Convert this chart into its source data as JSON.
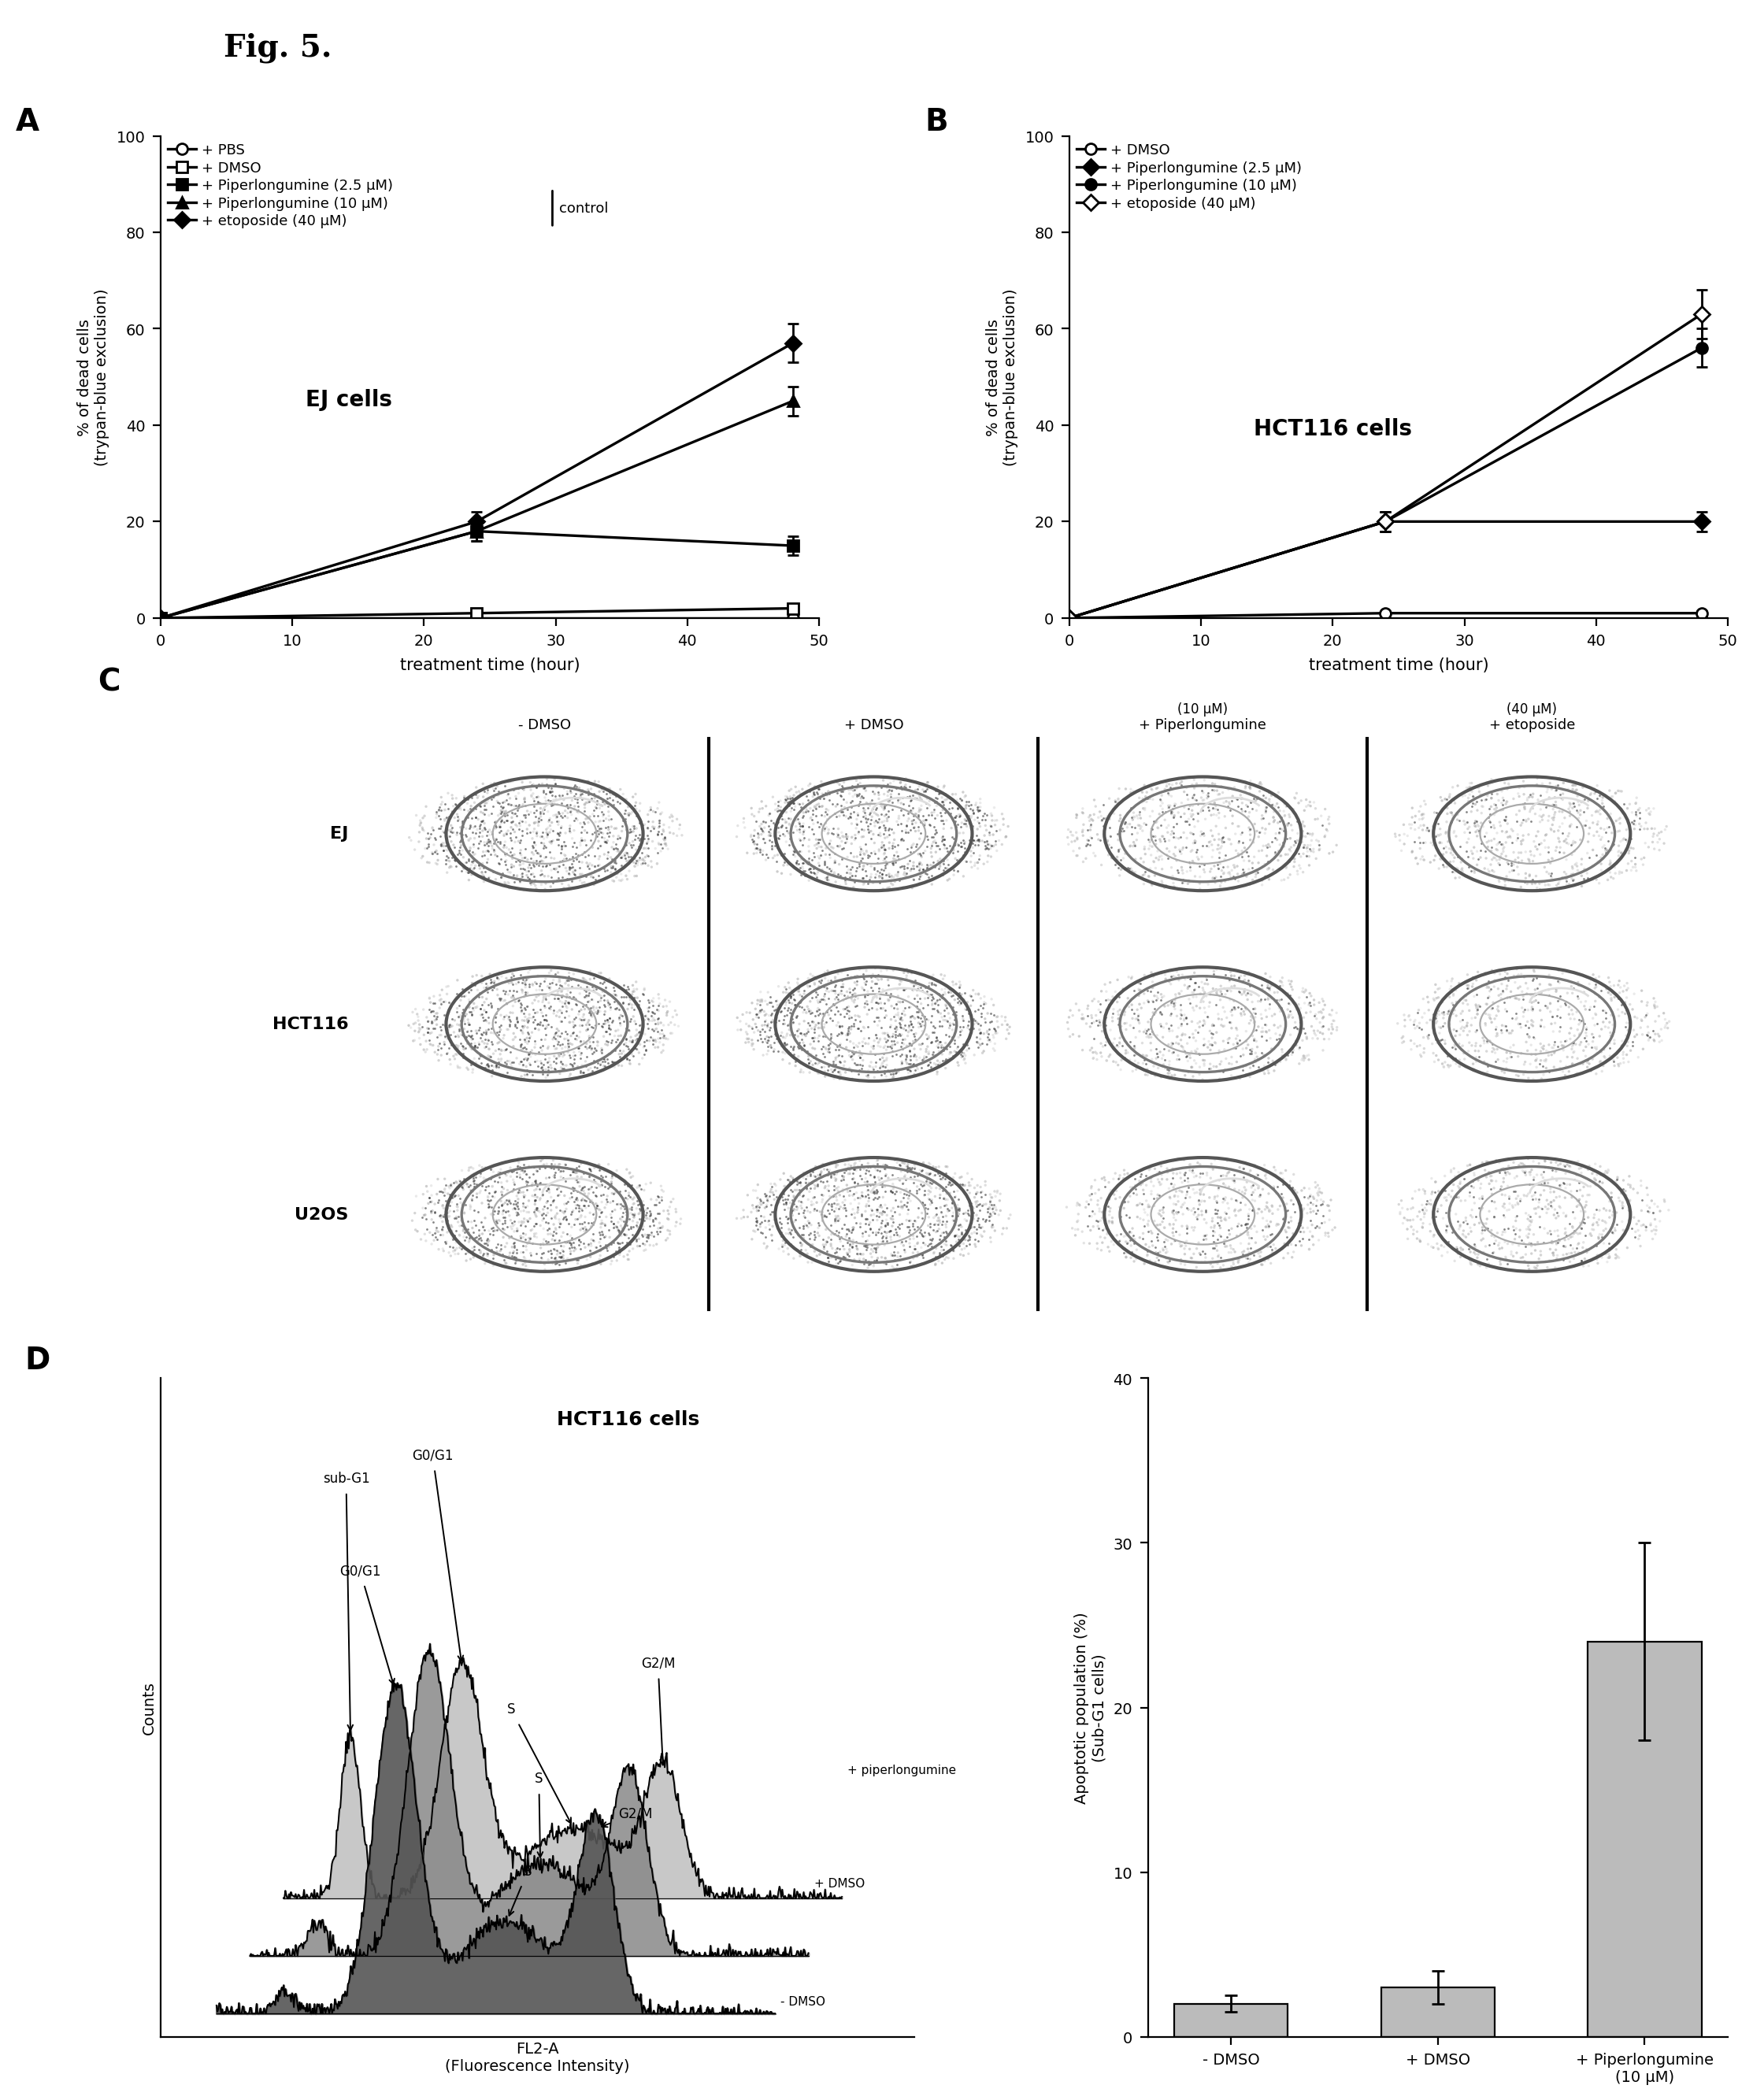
{
  "fig_title": "Fig. 5.",
  "panel_A": {
    "label": "A",
    "cell_type": "EJ cells",
    "x": [
      0,
      24,
      48
    ],
    "series": [
      {
        "label": "+ PBS",
        "marker": "o",
        "mfc": "white",
        "y": [
          0,
          0,
          0
        ],
        "yerr": [
          0,
          0,
          0
        ]
      },
      {
        "label": "+ DMSO",
        "marker": "s",
        "mfc": "white",
        "y": [
          0,
          1,
          2
        ],
        "yerr": [
          0,
          0.3,
          0.5
        ]
      },
      {
        "label": "+ Piperlongumine (2.5 μM)",
        "marker": "s",
        "mfc": "black",
        "y": [
          0,
          18,
          15
        ],
        "yerr": [
          0,
          2,
          2
        ]
      },
      {
        "label": "+ Piperlongumine (10 μM)",
        "marker": "^",
        "mfc": "black",
        "y": [
          0,
          18,
          45
        ],
        "yerr": [
          0,
          2,
          3
        ]
      },
      {
        "label": "+ etoposide (40 μM)",
        "marker": "D",
        "mfc": "black",
        "y": [
          0,
          20,
          57
        ],
        "yerr": [
          0,
          2,
          4
        ]
      }
    ],
    "ylabel": "% of dead cells\n(trypan-blue exclusion)",
    "xlabel": "treatment time (hour)",
    "ylim": [
      0,
      100
    ],
    "xlim": [
      0,
      50
    ],
    "yticks": [
      0,
      20,
      40,
      60,
      80,
      100
    ],
    "xticks": [
      0,
      10,
      20,
      30,
      40,
      50
    ]
  },
  "panel_B": {
    "label": "B",
    "cell_type": "HCT116 cells",
    "x": [
      0,
      24,
      48
    ],
    "series": [
      {
        "label": "+ DMSO",
        "marker": "o",
        "mfc": "white",
        "y": [
          0,
          1,
          1
        ],
        "yerr": [
          0,
          0.3,
          0.5
        ]
      },
      {
        "label": "+ Piperlongumine (2.5 μM)",
        "marker": "D",
        "mfc": "black",
        "y": [
          0,
          20,
          20
        ],
        "yerr": [
          0,
          2,
          2
        ]
      },
      {
        "label": "+ Piperlongumine (10 μM)",
        "marker": "o",
        "mfc": "black",
        "y": [
          0,
          20,
          56
        ],
        "yerr": [
          0,
          2,
          4
        ]
      },
      {
        "label": "+ etoposide (40 μM)",
        "marker": "D",
        "mfc": "white",
        "y": [
          0,
          20,
          63
        ],
        "yerr": [
          0,
          2,
          5
        ]
      }
    ],
    "ylabel": "% of dead cells\n(trypan-blue exclusion)",
    "xlabel": "treatment time (hour)",
    "ylim": [
      0,
      100
    ],
    "xlim": [
      0,
      50
    ],
    "yticks": [
      0,
      20,
      40,
      60,
      80,
      100
    ],
    "xticks": [
      0,
      10,
      20,
      30,
      40,
      50
    ]
  },
  "panel_C": {
    "label": "C",
    "col_labels_top": [
      "- DMSO",
      "+ DMSO",
      "+ Piperlongumine",
      "+ etoposide"
    ],
    "col_labels_top2": [
      "",
      "",
      "(10 μM)",
      "(40 μM)"
    ],
    "row_labels": [
      "EJ",
      "HCT116",
      "U2OS"
    ]
  },
  "panel_D_flow": {
    "label": "D",
    "x_label": "FL2-A\n(Fluorescence Intensity)",
    "y_label": "Counts"
  },
  "panel_D_bar": {
    "categories": [
      "- DMSO",
      "+ DMSO",
      "+ Piperlongumine\n(10 μM)"
    ],
    "values": [
      2,
      3,
      24
    ],
    "yerr": [
      0.5,
      1,
      6
    ],
    "ylabel": "Apoptotic population (%)\n(Sub-G1 cells)",
    "ylim": [
      0,
      40
    ],
    "yticks": [
      0,
      10,
      20,
      30,
      40
    ],
    "bar_color": "#bbbbbb"
  },
  "bg": "#ffffff"
}
